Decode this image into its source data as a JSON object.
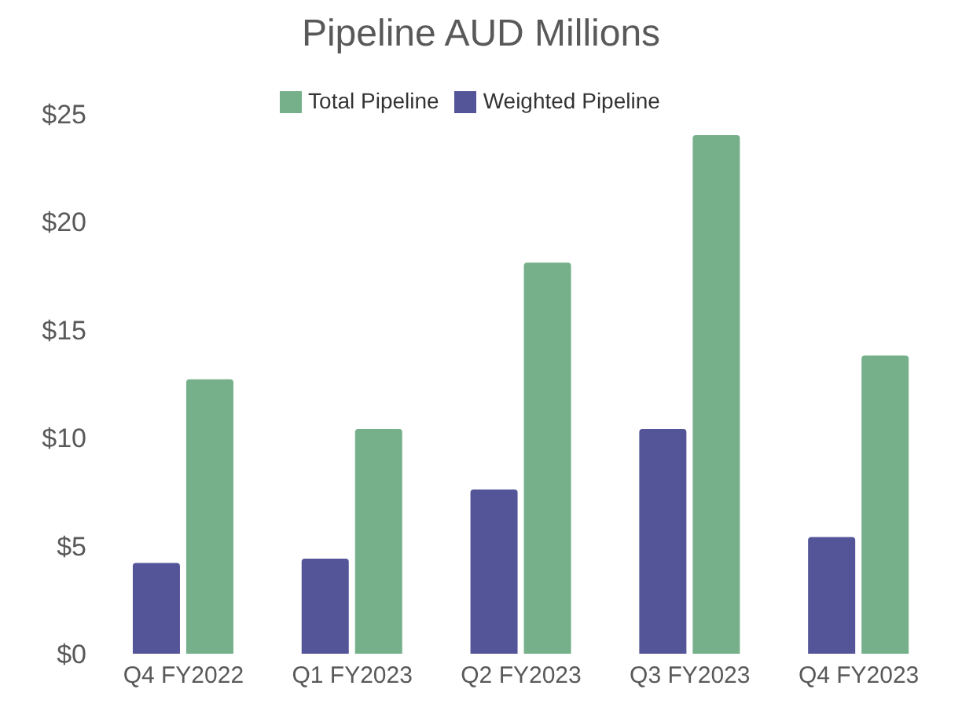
{
  "chart_data": {
    "type": "bar",
    "title": "Pipeline AUD Millions",
    "categories": [
      "Q4 FY2022",
      "Q1 FY2023",
      "Q2 FY2023",
      "Q3 FY2023",
      "Q4 FY2023"
    ],
    "series": [
      {
        "name": "Weighted Pipeline",
        "color": "#545499",
        "values": [
          4.2,
          4.4,
          7.6,
          10.4,
          5.4
        ]
      },
      {
        "name": "Total Pipeline",
        "color": "#75b08a",
        "values": [
          12.7,
          10.4,
          18.1,
          24.0,
          13.8
        ]
      }
    ],
    "ylim": [
      0,
      25
    ],
    "yticks": [
      {
        "value": 0,
        "label": "$0"
      },
      {
        "value": 5,
        "label": "$5"
      },
      {
        "value": 10,
        "label": "$10"
      },
      {
        "value": 15,
        "label": "$15"
      },
      {
        "value": 20,
        "label": "$20"
      },
      {
        "value": 25,
        "label": "$25"
      }
    ],
    "grid": false,
    "legend": "top"
  }
}
